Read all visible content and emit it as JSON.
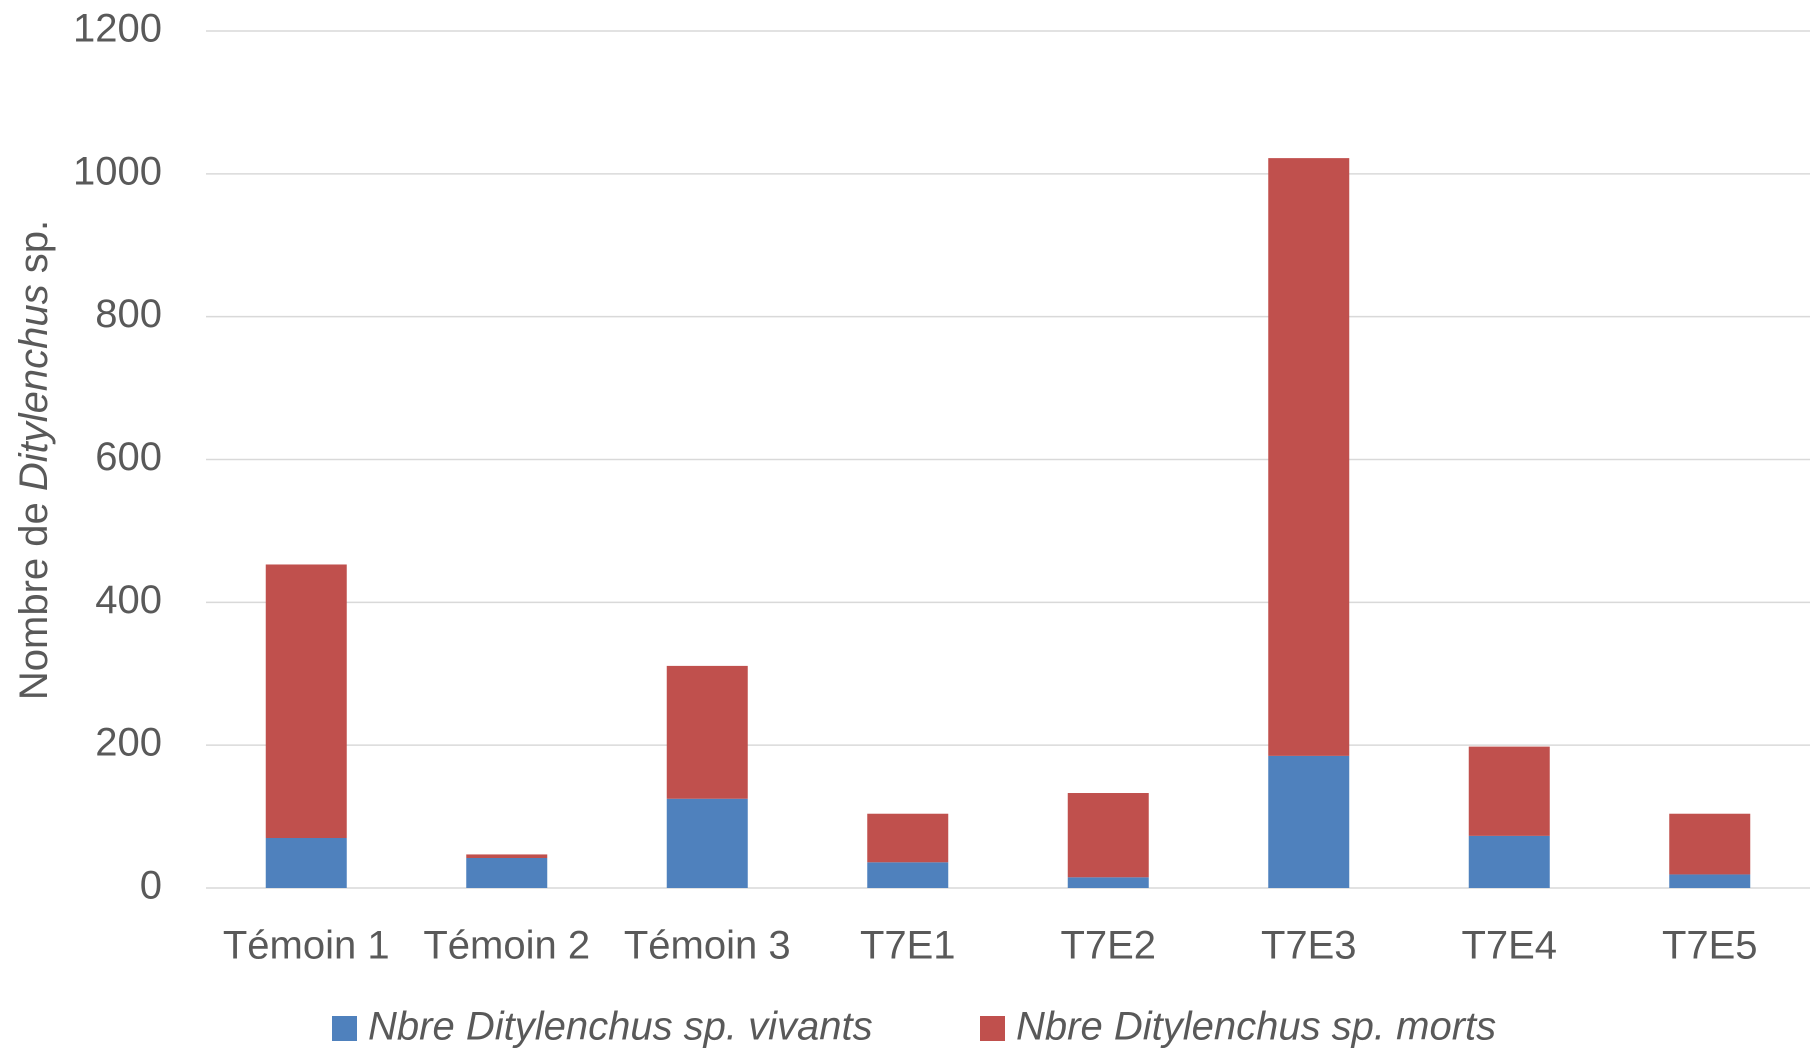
{
  "chart_data": {
    "type": "stacked_bar",
    "y_label": [
      "Nombre de ",
      "Ditylenchus",
      " sp."
    ],
    "categories": [
      "Témoin 1",
      "Témoin 2",
      "Témoin 3",
      "T7E1",
      "T7E2",
      "T7E3",
      "T7E4",
      "T7E5"
    ],
    "series": [
      {
        "name": "Nbre Ditylenchus sp. vivants",
        "color": "#4f81bd",
        "values": [
          70,
          42,
          125,
          36,
          15,
          185,
          73,
          19
        ]
      },
      {
        "name": "Nbre Ditylenchus sp. morts",
        "color": "#c0504d",
        "values": [
          383,
          5,
          186,
          68,
          118,
          837,
          125,
          85
        ]
      }
    ],
    "ylim": [
      0,
      1200
    ],
    "yticks": [
      0,
      200,
      400,
      600,
      800,
      1000,
      1200
    ],
    "grid": true,
    "legend": "bottom"
  }
}
